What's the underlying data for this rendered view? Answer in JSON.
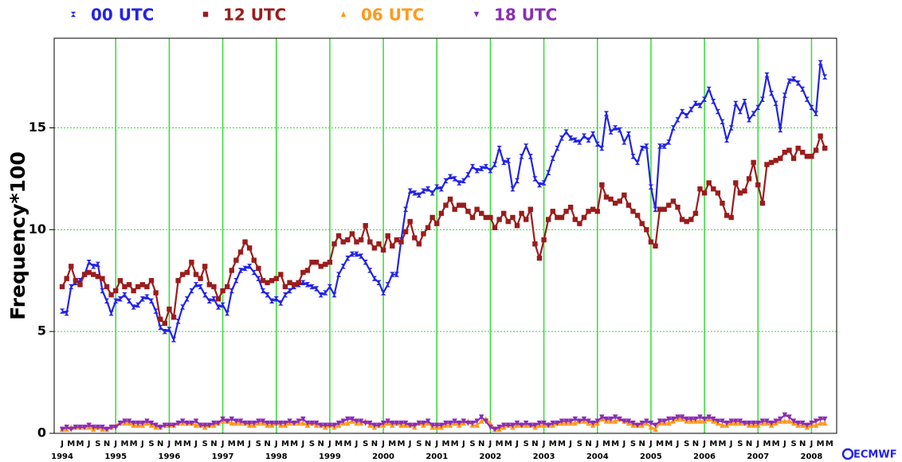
{
  "chart_data": {
    "type": "scatter-line",
    "y_label": "Frequency*100",
    "logo": "ECMWF",
    "legend": "top",
    "grid": true,
    "grid_color": "#33dd33",
    "xlim": [
      1993.85,
      2008.47
    ],
    "xticks": [
      1994,
      1995,
      1996,
      1997,
      1998,
      1999,
      2000,
      2001,
      2002,
      2003,
      2004,
      2005,
      2006,
      2007,
      2008
    ],
    "month_labels": [
      "J",
      "M",
      "M",
      "J",
      "S",
      "N"
    ],
    "ylim": [
      0,
      19.4
    ],
    "yticks": [
      0,
      5,
      10,
      15
    ],
    "x": [
      "1994-01",
      "1994-02",
      "1994-03",
      "1994-04",
      "1994-05",
      "1994-06",
      "1994-07",
      "1994-08",
      "1994-09",
      "1994-10",
      "1994-11",
      "1994-12",
      "1995-01",
      "1995-02",
      "1995-03",
      "1995-04",
      "1995-05",
      "1995-06",
      "1995-07",
      "1995-08",
      "1995-09",
      "1995-10",
      "1995-11",
      "1995-12",
      "1996-01",
      "1996-02",
      "1996-03",
      "1996-04",
      "1996-05",
      "1996-06",
      "1996-07",
      "1996-08",
      "1996-09",
      "1996-10",
      "1996-11",
      "1996-12",
      "1997-01",
      "1997-02",
      "1997-03",
      "1997-04",
      "1997-05",
      "1997-06",
      "1997-07",
      "1997-08",
      "1997-09",
      "1997-10",
      "1997-11",
      "1997-12",
      "1998-01",
      "1998-02",
      "1998-03",
      "1998-04",
      "1998-05",
      "1998-06",
      "1998-07",
      "1998-08",
      "1998-09",
      "1998-10",
      "1998-11",
      "1998-12",
      "1999-01",
      "1999-02",
      "1999-03",
      "1999-04",
      "1999-05",
      "1999-06",
      "1999-07",
      "1999-08",
      "1999-09",
      "1999-10",
      "1999-11",
      "1999-12",
      "2000-01",
      "2000-02",
      "2000-03",
      "2000-04",
      "2000-05",
      "2000-06",
      "2000-07",
      "2000-08",
      "2000-09",
      "2000-10",
      "2000-11",
      "2000-12",
      "2001-01",
      "2001-02",
      "2001-03",
      "2001-04",
      "2001-05",
      "2001-06",
      "2001-07",
      "2001-08",
      "2001-09",
      "2001-10",
      "2001-11",
      "2001-12",
      "2002-01",
      "2002-02",
      "2002-03",
      "2002-04",
      "2002-05",
      "2002-06",
      "2002-07",
      "2002-08",
      "2002-09",
      "2002-10",
      "2002-11",
      "2002-12",
      "2003-01",
      "2003-02",
      "2003-03",
      "2003-04",
      "2003-05",
      "2003-06",
      "2003-07",
      "2003-08",
      "2003-09",
      "2003-10",
      "2003-11",
      "2003-12",
      "2004-01",
      "2004-02",
      "2004-03",
      "2004-04",
      "2004-05",
      "2004-06",
      "2004-07",
      "2004-08",
      "2004-09",
      "2004-10",
      "2004-11",
      "2004-12",
      "2005-01",
      "2005-02",
      "2005-03",
      "2005-04",
      "2005-05",
      "2005-06",
      "2005-07",
      "2005-08",
      "2005-09",
      "2005-10",
      "2005-11",
      "2005-12",
      "2006-01",
      "2006-02",
      "2006-03",
      "2006-04",
      "2006-05",
      "2006-06",
      "2006-07",
      "2006-08",
      "2006-09",
      "2006-10",
      "2006-11",
      "2006-12",
      "2007-01",
      "2007-02",
      "2007-03",
      "2007-04",
      "2007-05",
      "2007-06",
      "2007-07",
      "2007-08",
      "2007-09",
      "2007-10",
      "2007-11",
      "2007-12",
      "2008-01",
      "2008-02",
      "2008-03",
      "2008-04"
    ],
    "series": [
      {
        "name": "00 UTC",
        "color": "#2323e6",
        "marker": "x",
        "values": [
          6.0,
          5.9,
          7.2,
          7.4,
          7.5,
          7.8,
          8.4,
          8.2,
          8.3,
          7.0,
          6.5,
          5.9,
          6.5,
          6.6,
          6.8,
          6.5,
          6.2,
          6.3,
          6.6,
          6.7,
          6.5,
          6.0,
          5.2,
          5.0,
          5.1,
          4.6,
          5.5,
          6.2,
          6.6,
          7.0,
          7.3,
          7.2,
          6.8,
          6.5,
          6.6,
          6.2,
          6.3,
          5.9,
          7.0,
          7.5,
          8.0,
          8.1,
          8.2,
          7.9,
          7.6,
          7.0,
          6.8,
          6.5,
          6.6,
          6.4,
          6.8,
          7.0,
          7.2,
          7.3,
          7.4,
          7.3,
          7.2,
          7.1,
          6.8,
          6.9,
          7.2,
          6.8,
          7.8,
          8.2,
          8.6,
          8.8,
          8.8,
          8.7,
          8.4,
          8.0,
          7.6,
          7.4,
          6.9,
          7.3,
          7.8,
          7.8,
          9.5,
          11.0,
          11.9,
          11.8,
          11.7,
          11.9,
          12.0,
          11.8,
          12.1,
          12.0,
          12.4,
          12.6,
          12.5,
          12.3,
          12.4,
          12.7,
          13.1,
          12.9,
          13.0,
          13.1,
          12.9,
          13.2,
          14.0,
          13.3,
          13.4,
          12.0,
          12.4,
          13.6,
          14.1,
          13.6,
          12.5,
          12.2,
          12.3,
          12.8,
          13.5,
          14.0,
          14.5,
          14.8,
          14.5,
          14.4,
          14.3,
          14.6,
          14.4,
          14.7,
          14.2,
          14.0,
          15.7,
          14.8,
          15.0,
          14.9,
          14.3,
          14.7,
          13.6,
          13.3,
          14.0,
          14.1,
          12.1,
          11.0,
          14.1,
          14.1,
          14.3,
          15.0,
          15.4,
          15.8,
          15.6,
          15.9,
          16.2,
          16.1,
          16.4,
          16.9,
          16.3,
          15.8,
          15.3,
          14.4,
          15.0,
          16.2,
          15.8,
          16.3,
          15.4,
          15.7,
          16.0,
          16.4,
          17.6,
          16.7,
          16.2,
          14.9,
          16.6,
          17.3,
          17.4,
          17.2,
          16.9,
          16.4,
          16.0,
          15.7,
          18.2,
          17.5
        ]
      },
      {
        "name": "12 UTC",
        "color": "#9b1c1c",
        "marker": "square",
        "values": [
          7.2,
          7.6,
          8.2,
          7.5,
          7.3,
          7.8,
          7.9,
          7.8,
          7.7,
          7.6,
          7.2,
          6.8,
          7.0,
          7.5,
          7.2,
          7.3,
          7.0,
          7.2,
          7.3,
          7.2,
          7.5,
          6.9,
          5.6,
          5.4,
          6.1,
          5.7,
          7.5,
          7.8,
          7.9,
          8.4,
          7.8,
          7.6,
          8.2,
          7.3,
          7.2,
          6.6,
          7.0,
          7.2,
          8.0,
          8.5,
          8.9,
          9.4,
          9.1,
          8.5,
          8.1,
          7.5,
          7.4,
          7.5,
          7.6,
          7.8,
          7.2,
          7.4,
          7.3,
          7.4,
          7.9,
          8.0,
          8.4,
          8.4,
          8.2,
          8.3,
          8.4,
          9.3,
          9.7,
          9.4,
          9.5,
          9.8,
          9.4,
          9.5,
          10.2,
          9.4,
          9.1,
          9.3,
          9.0,
          9.7,
          9.2,
          9.5,
          9.4,
          9.9,
          10.4,
          9.6,
          9.3,
          9.8,
          10.1,
          10.6,
          10.3,
          10.8,
          11.2,
          11.5,
          11.0,
          11.2,
          11.2,
          10.9,
          10.6,
          11.0,
          10.8,
          10.6,
          10.6,
          10.1,
          10.5,
          10.8,
          10.4,
          10.6,
          10.2,
          10.8,
          10.5,
          11.0,
          9.3,
          8.6,
          9.5,
          10.5,
          10.9,
          10.6,
          10.6,
          10.9,
          11.1,
          10.5,
          10.3,
          10.6,
          10.9,
          11.0,
          10.9,
          12.2,
          11.6,
          11.5,
          11.3,
          11.4,
          11.7,
          11.2,
          10.9,
          10.7,
          10.3,
          10.0,
          9.4,
          9.2,
          11.0,
          11.0,
          11.2,
          11.4,
          11.1,
          10.5,
          10.4,
          10.5,
          10.8,
          12.0,
          11.8,
          12.3,
          12.0,
          11.8,
          11.3,
          10.7,
          10.6,
          12.3,
          11.8,
          11.9,
          12.5,
          13.3,
          12.2,
          11.3,
          13.2,
          13.3,
          13.4,
          13.5,
          13.8,
          13.9,
          13.5,
          14.0,
          13.8,
          13.6,
          13.6,
          13.9,
          14.6,
          14.0
        ]
      },
      {
        "name": "06 UTC",
        "color": "#ff9a1a",
        "marker": "triangle-up",
        "values": [
          0.2,
          0.2,
          0.3,
          0.3,
          0.3,
          0.3,
          0.3,
          0.2,
          0.3,
          0.2,
          0.2,
          0.3,
          0.4,
          0.5,
          0.5,
          0.5,
          0.4,
          0.4,
          0.4,
          0.5,
          0.4,
          0.3,
          0.3,
          0.4,
          0.4,
          0.4,
          0.5,
          0.5,
          0.5,
          0.5,
          0.4,
          0.4,
          0.3,
          0.4,
          0.4,
          0.5,
          0.6,
          0.6,
          0.5,
          0.5,
          0.5,
          0.5,
          0.4,
          0.4,
          0.5,
          0.5,
          0.4,
          0.4,
          0.5,
          0.4,
          0.4,
          0.5,
          0.5,
          0.5,
          0.5,
          0.4,
          0.5,
          0.4,
          0.4,
          0.3,
          0.4,
          0.3,
          0.4,
          0.5,
          0.5,
          0.6,
          0.5,
          0.5,
          0.6,
          0.4,
          0.3,
          0.4,
          0.4,
          0.5,
          0.4,
          0.5,
          0.4,
          0.4,
          0.4,
          0.3,
          0.5,
          0.4,
          0.5,
          0.3,
          0.3,
          0.3,
          0.4,
          0.4,
          0.5,
          0.4,
          0.5,
          0.6,
          0.4,
          0.4,
          0.6,
          0.7,
          0.5,
          0.2,
          0.2,
          0.3,
          0.4,
          0.3,
          0.4,
          0.4,
          0.4,
          0.4,
          0.3,
          0.4,
          0.4,
          0.4,
          0.4,
          0.5,
          0.5,
          0.5,
          0.5,
          0.5,
          0.6,
          0.6,
          0.5,
          0.4,
          0.5,
          0.7,
          0.6,
          0.6,
          0.6,
          0.7,
          0.6,
          0.5,
          0.4,
          0.4,
          0.4,
          0.5,
          0.3,
          0.2,
          0.5,
          0.5,
          0.5,
          0.6,
          0.7,
          0.7,
          0.6,
          0.6,
          0.6,
          0.6,
          0.6,
          0.7,
          0.6,
          0.5,
          0.4,
          0.4,
          0.5,
          0.5,
          0.5,
          0.5,
          0.4,
          0.4,
          0.4,
          0.5,
          0.5,
          0.4,
          0.5,
          0.6,
          0.6,
          0.6,
          0.5,
          0.4,
          0.4,
          0.3,
          0.4,
          0.4,
          0.5,
          0.5
        ]
      },
      {
        "name": "18 UTC",
        "color": "#8b2db5",
        "marker": "triangle-down",
        "values": [
          0.2,
          0.3,
          0.2,
          0.3,
          0.3,
          0.3,
          0.4,
          0.3,
          0.3,
          0.3,
          0.2,
          0.3,
          0.3,
          0.5,
          0.6,
          0.6,
          0.5,
          0.5,
          0.5,
          0.6,
          0.5,
          0.4,
          0.3,
          0.4,
          0.4,
          0.4,
          0.5,
          0.6,
          0.5,
          0.5,
          0.6,
          0.4,
          0.4,
          0.4,
          0.5,
          0.5,
          0.7,
          0.6,
          0.7,
          0.6,
          0.6,
          0.5,
          0.5,
          0.5,
          0.6,
          0.6,
          0.5,
          0.5,
          0.5,
          0.5,
          0.5,
          0.6,
          0.5,
          0.6,
          0.7,
          0.5,
          0.5,
          0.5,
          0.4,
          0.4,
          0.4,
          0.4,
          0.5,
          0.6,
          0.7,
          0.7,
          0.6,
          0.6,
          0.5,
          0.5,
          0.4,
          0.4,
          0.5,
          0.6,
          0.5,
          0.5,
          0.5,
          0.5,
          0.4,
          0.4,
          0.5,
          0.5,
          0.6,
          0.4,
          0.4,
          0.4,
          0.5,
          0.5,
          0.6,
          0.5,
          0.6,
          0.5,
          0.5,
          0.6,
          0.8,
          0.6,
          0.3,
          0.2,
          0.3,
          0.4,
          0.4,
          0.4,
          0.5,
          0.4,
          0.5,
          0.4,
          0.4,
          0.5,
          0.5,
          0.4,
          0.5,
          0.5,
          0.6,
          0.6,
          0.6,
          0.7,
          0.6,
          0.7,
          0.6,
          0.5,
          0.6,
          0.8,
          0.7,
          0.7,
          0.8,
          0.7,
          0.6,
          0.6,
          0.5,
          0.4,
          0.5,
          0.6,
          0.5,
          0.4,
          0.6,
          0.6,
          0.7,
          0.7,
          0.8,
          0.8,
          0.7,
          0.7,
          0.7,
          0.8,
          0.7,
          0.8,
          0.7,
          0.6,
          0.6,
          0.5,
          0.6,
          0.6,
          0.6,
          0.5,
          0.5,
          0.5,
          0.5,
          0.6,
          0.6,
          0.5,
          0.6,
          0.7,
          0.9,
          0.8,
          0.6,
          0.5,
          0.5,
          0.4,
          0.5,
          0.6,
          0.7,
          0.7
        ]
      }
    ]
  }
}
